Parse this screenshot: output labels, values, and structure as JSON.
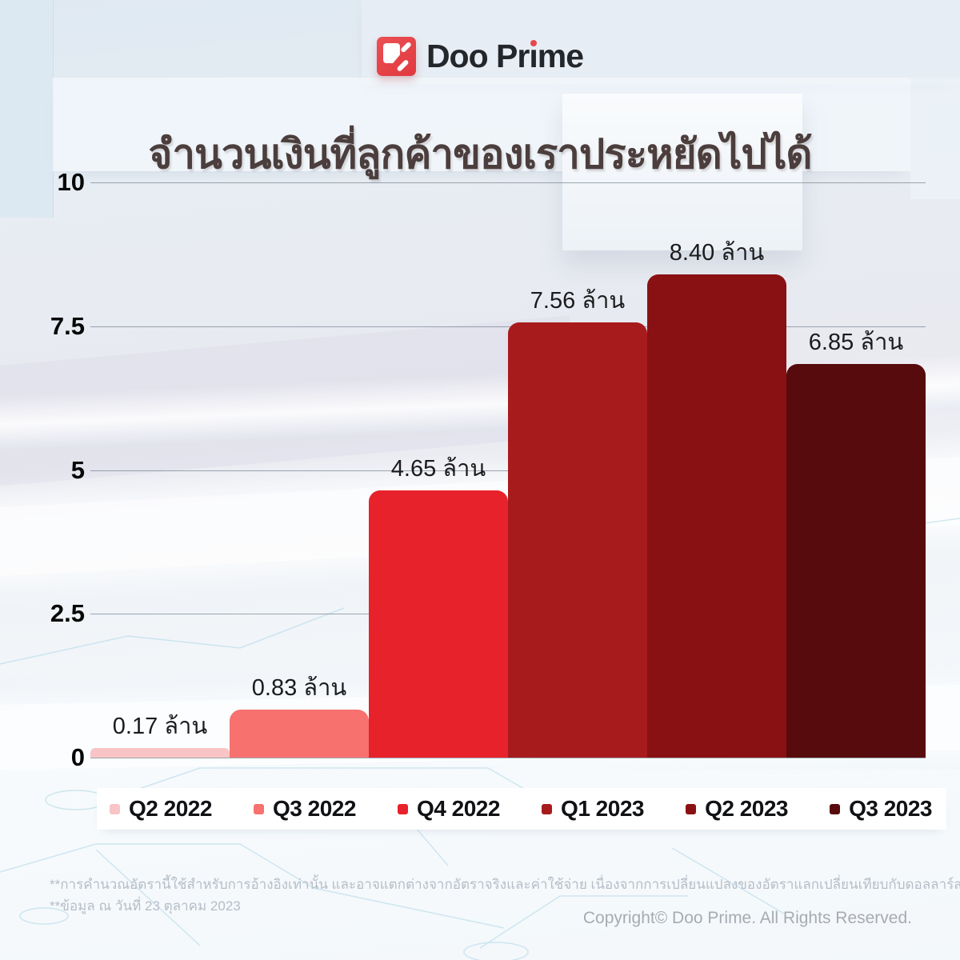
{
  "brand": {
    "logo_text": "Doo Prime",
    "logo_color": "#e5484c",
    "logo_text_color": "#23262a"
  },
  "chart_data": {
    "type": "bar",
    "title": "จำนวนเงินที่ลูกค้าของเราประหยัดไปได้",
    "categories": [
      "Q2 2022",
      "Q3 2022",
      "Q4 2022",
      "Q1 2023",
      "Q2 2023",
      "Q3 2023"
    ],
    "values": [
      0.17,
      0.83,
      4.65,
      7.56,
      8.4,
      6.85
    ],
    "value_labels": [
      "0.17 ล้าน",
      "0.83 ล้าน",
      "4.65 ล้าน",
      "7.56 ล้าน",
      "8.40 ล้าน",
      "6.85 ล้าน"
    ],
    "unit": "ล้าน",
    "bar_colors": [
      "#f8c4c6",
      "#f7716e",
      "#e8222b",
      "#a81b1d",
      "#8a1113",
      "#570b0d"
    ],
    "y_ticks": [
      "10",
      "7.5",
      "5",
      "2.5",
      "0"
    ],
    "ylim": [
      0,
      10
    ],
    "grid": true,
    "legend_position": "bottom"
  },
  "footnotes": {
    "line1": "**การคำนวณอัตรานี้ใช้สำหรับการอ้างอิงเท่านั้น และอาจแตกต่างจากอัตราจริงและค่าใช้จ่าย เนื่องจากการเปลี่ยนแปลงของอัตราแลกเปลี่ยนเทียบกับดอลลาร์สหรัฐ",
    "line2": "**ข้อมูล ณ วันที่ 23 ตุลาคม 2023"
  },
  "footer": {
    "copyright": "Copyright© Doo Prime. All Rights Reserved."
  }
}
